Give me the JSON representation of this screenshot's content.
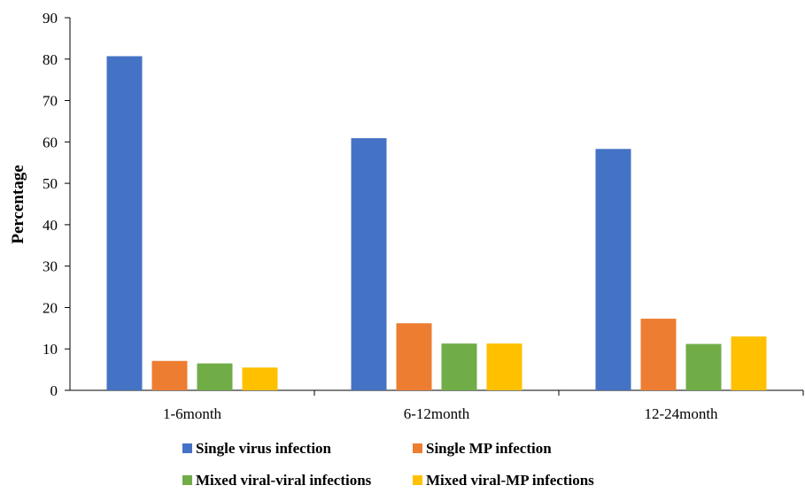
{
  "chart_data": {
    "type": "bar",
    "title": "",
    "xlabel": "",
    "ylabel": "Percentage",
    "categories": [
      "1-6month",
      "6-12month",
      "12-24month"
    ],
    "ylim": [
      0,
      90
    ],
    "yticks": [
      0,
      10,
      20,
      30,
      40,
      50,
      60,
      70,
      80,
      90
    ],
    "grid": false,
    "legend_position": "bottom",
    "series": [
      {
        "name": "Single virus infection",
        "color": "#4472C4",
        "values": [
          80.7,
          60.9,
          58.3
        ]
      },
      {
        "name": "Single MP infection",
        "color": "#ED7D31",
        "values": [
          7.1,
          16.2,
          17.3
        ]
      },
      {
        "name": "Mixed viral-viral infections",
        "color": "#70AD47",
        "values": [
          6.5,
          11.3,
          11.2
        ]
      },
      {
        "name": "Mixed viral-MP infections",
        "color": "#FFC000",
        "values": [
          5.5,
          11.3,
          13.0
        ]
      }
    ]
  }
}
